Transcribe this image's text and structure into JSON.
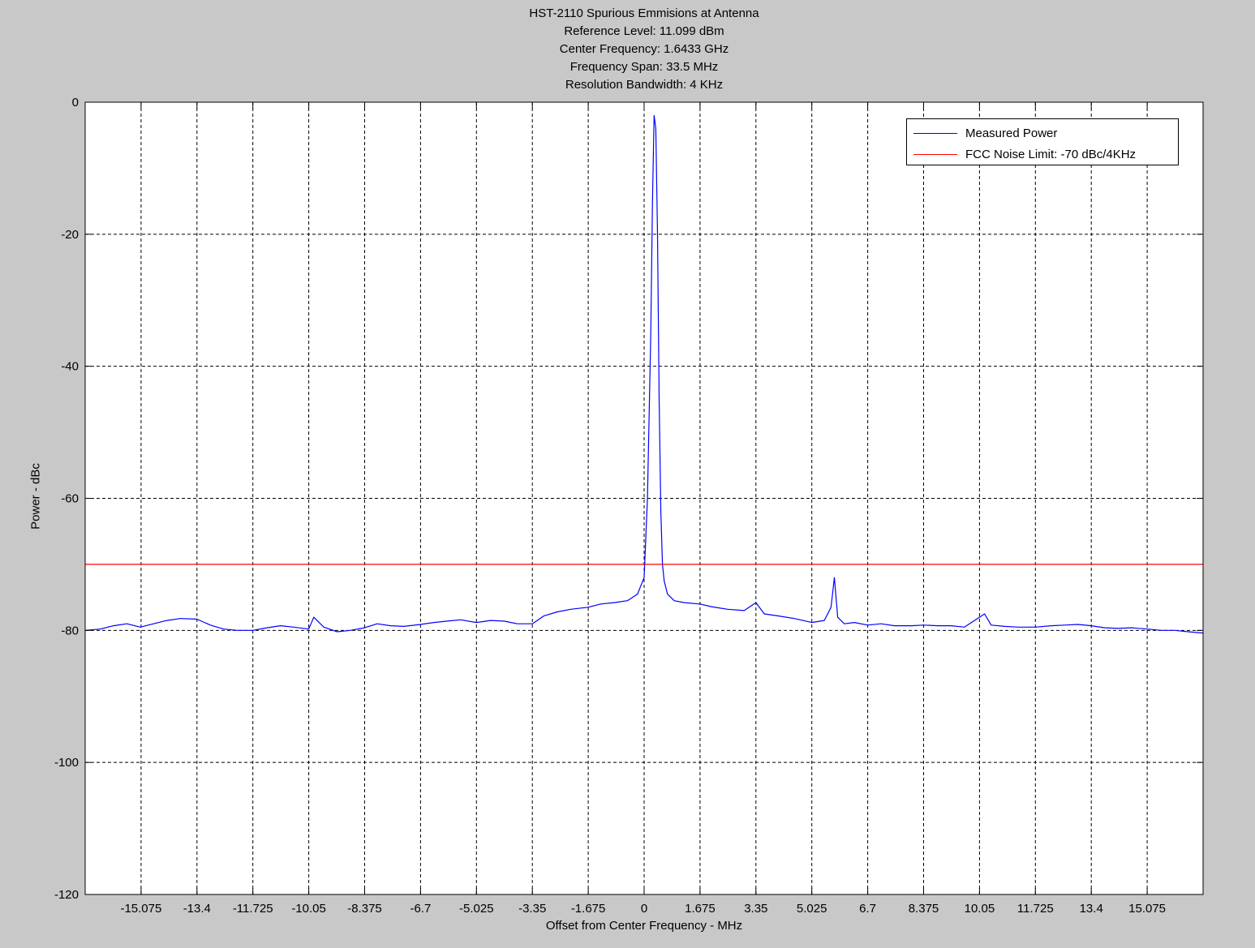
{
  "window": {
    "background": "#c8c8c8"
  },
  "chart_data": {
    "type": "line",
    "title_lines": [
      "HST-2110 Spurious Emmisions at Antenna",
      "Reference Level: 11.099 dBm",
      "Center Frequency: 1.6433 GHz",
      "Frequency Span: 33.5 MHz",
      "Resolution Bandwidth: 4 KHz"
    ],
    "xlabel": "Offset from Center Frequency - MHz",
    "ylabel": "Power - dBc",
    "xlim": [
      -16.75,
      16.75
    ],
    "ylim": [
      -120,
      0
    ],
    "xticks": [
      -15.075,
      -13.4,
      -11.725,
      -10.05,
      -8.375,
      -6.7,
      -5.025,
      -3.35,
      -1.675,
      0,
      1.675,
      3.35,
      5.025,
      6.7,
      8.375,
      10.05,
      11.725,
      13.4,
      15.075
    ],
    "xtick_labels": [
      "-15.075",
      "-13.4",
      "-11.725",
      "-10.05",
      "-8.375",
      "-6.7",
      "-5.025",
      "-3.35",
      "-1.675",
      "0",
      "1.675",
      "3.35",
      "5.025",
      "6.7",
      "8.375",
      "10.05",
      "11.725",
      "13.4",
      "15.075"
    ],
    "yticks": [
      0,
      -20,
      -40,
      -60,
      -80,
      -100,
      -120
    ],
    "ytick_labels": [
      "0",
      "-20",
      "-40",
      "-60",
      "-80",
      "-100",
      "-120"
    ],
    "grid": true,
    "legend_position": "top-right",
    "series": [
      {
        "name": "Measured Power",
        "color": "#0000ff",
        "x": [
          -16.75,
          -16.3,
          -15.9,
          -15.5,
          -15.1,
          -14.7,
          -14.3,
          -13.9,
          -13.4,
          -13.0,
          -12.6,
          -12.2,
          -11.725,
          -11.3,
          -10.9,
          -10.5,
          -10.05,
          -9.9,
          -9.6,
          -9.2,
          -8.8,
          -8.375,
          -8.0,
          -7.6,
          -7.2,
          -6.7,
          -6.3,
          -5.9,
          -5.5,
          -5.025,
          -4.6,
          -4.2,
          -3.8,
          -3.35,
          -3.0,
          -2.6,
          -2.2,
          -1.675,
          -1.3,
          -0.9,
          -0.5,
          -0.2,
          0.0,
          0.1,
          0.2,
          0.25,
          0.3,
          0.35,
          0.4,
          0.45,
          0.5,
          0.55,
          0.6,
          0.7,
          0.9,
          1.2,
          1.675,
          2.0,
          2.5,
          3.0,
          3.35,
          3.6,
          4.0,
          4.5,
          5.025,
          5.4,
          5.6,
          5.7,
          5.8,
          6.0,
          6.3,
          6.7,
          7.1,
          7.5,
          8.0,
          8.375,
          8.8,
          9.2,
          9.6,
          10.05,
          10.2,
          10.4,
          10.8,
          11.2,
          11.725,
          12.2,
          12.6,
          13.0,
          13.4,
          13.8,
          14.2,
          14.6,
          15.075,
          15.5,
          15.9,
          16.3,
          16.75
        ],
        "y": [
          -80.0,
          -79.8,
          -79.3,
          -79.0,
          -79.5,
          -79.0,
          -78.5,
          -78.2,
          -78.3,
          -79.2,
          -79.8,
          -80.0,
          -80.0,
          -79.6,
          -79.3,
          -79.5,
          -79.8,
          -78.0,
          -79.5,
          -80.2,
          -80.0,
          -79.6,
          -79.0,
          -79.3,
          -79.4,
          -79.1,
          -78.8,
          -78.6,
          -78.4,
          -78.8,
          -78.5,
          -78.6,
          -79.0,
          -79.0,
          -77.8,
          -77.2,
          -76.8,
          -76.5,
          -76.0,
          -75.8,
          -75.5,
          -74.5,
          -72.0,
          -60.0,
          -35.0,
          -15.0,
          -2.0,
          -4.0,
          -20.0,
          -45.0,
          -62.0,
          -70.0,
          -72.5,
          -74.5,
          -75.5,
          -75.8,
          -76.0,
          -76.4,
          -76.8,
          -77.0,
          -75.8,
          -77.5,
          -77.8,
          -78.2,
          -78.8,
          -78.5,
          -76.5,
          -72.0,
          -78.0,
          -79.0,
          -78.8,
          -79.2,
          -79.0,
          -79.3,
          -79.3,
          -79.2,
          -79.3,
          -79.3,
          -79.5,
          -78.0,
          -77.5,
          -79.2,
          -79.4,
          -79.5,
          -79.5,
          -79.3,
          -79.2,
          -79.1,
          -79.3,
          -79.6,
          -79.7,
          -79.6,
          -79.8,
          -80.0,
          -80.0,
          -80.2,
          -80.4
        ]
      },
      {
        "name": "FCC Noise Limit: -70 dBc/4KHz",
        "color": "#ff0000",
        "x": [
          -16.75,
          16.75
        ],
        "y": [
          -70,
          -70
        ]
      }
    ]
  }
}
